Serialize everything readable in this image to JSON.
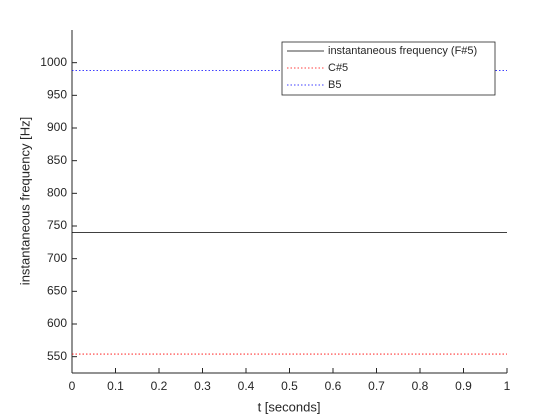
{
  "chart_data": {
    "type": "line",
    "xlabel": "t [seconds]",
    "ylabel": "instantaneous frequency [Hz]",
    "x": [
      0,
      1
    ],
    "series": [
      {
        "name": "instantaneous frequency (F#5)",
        "color": "#000000",
        "style": "solid",
        "values": [
          740,
          740
        ]
      },
      {
        "name": "C#5",
        "color": "#ff0000",
        "style": "dotted",
        "values": [
          554,
          554
        ]
      },
      {
        "name": "B5",
        "color": "#0000ff",
        "style": "dotted",
        "values": [
          988,
          988
        ]
      }
    ],
    "xlim": [
      0,
      1
    ],
    "xticks": [
      0,
      0.1,
      0.2,
      0.3,
      0.4,
      0.5,
      0.6,
      0.7,
      0.8,
      0.9,
      1
    ],
    "ylim": [
      525,
      1050
    ],
    "yticks": [
      550,
      600,
      650,
      700,
      750,
      800,
      850,
      900,
      950,
      1000
    ],
    "legend": "upper right"
  }
}
